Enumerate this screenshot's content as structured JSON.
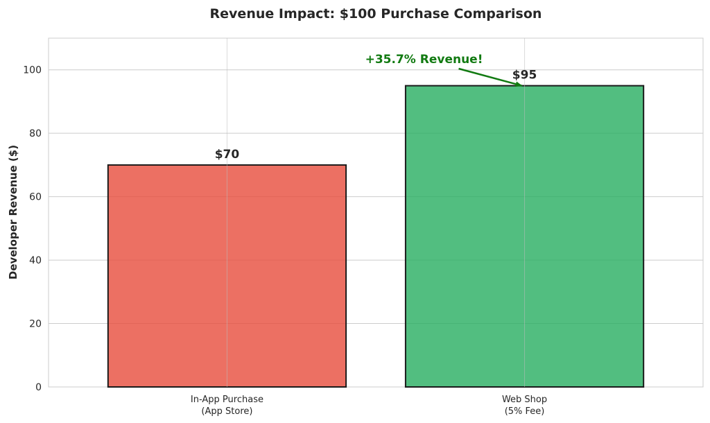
{
  "chart_data": {
    "type": "bar",
    "title": "Revenue Impact: $100 Purchase Comparison",
    "xlabel": "",
    "ylabel": "Developer Revenue ($)",
    "ylim": [
      0,
      110
    ],
    "yticks": [
      0,
      20,
      40,
      60,
      80,
      100
    ],
    "grid": true,
    "categories": [
      [
        "In-App Purchase",
        "(App Store)"
      ],
      [
        "Web Shop",
        "(5% Fee)"
      ]
    ],
    "values": [
      70,
      95
    ],
    "data_labels": [
      "$70",
      "$95"
    ],
    "colors": [
      "#e74c3c",
      "#27ae60"
    ],
    "annotation": {
      "text": "+35.7% Revenue!",
      "color": "#117a11",
      "points_to": {
        "category_index": 1,
        "value": 95
      }
    }
  }
}
